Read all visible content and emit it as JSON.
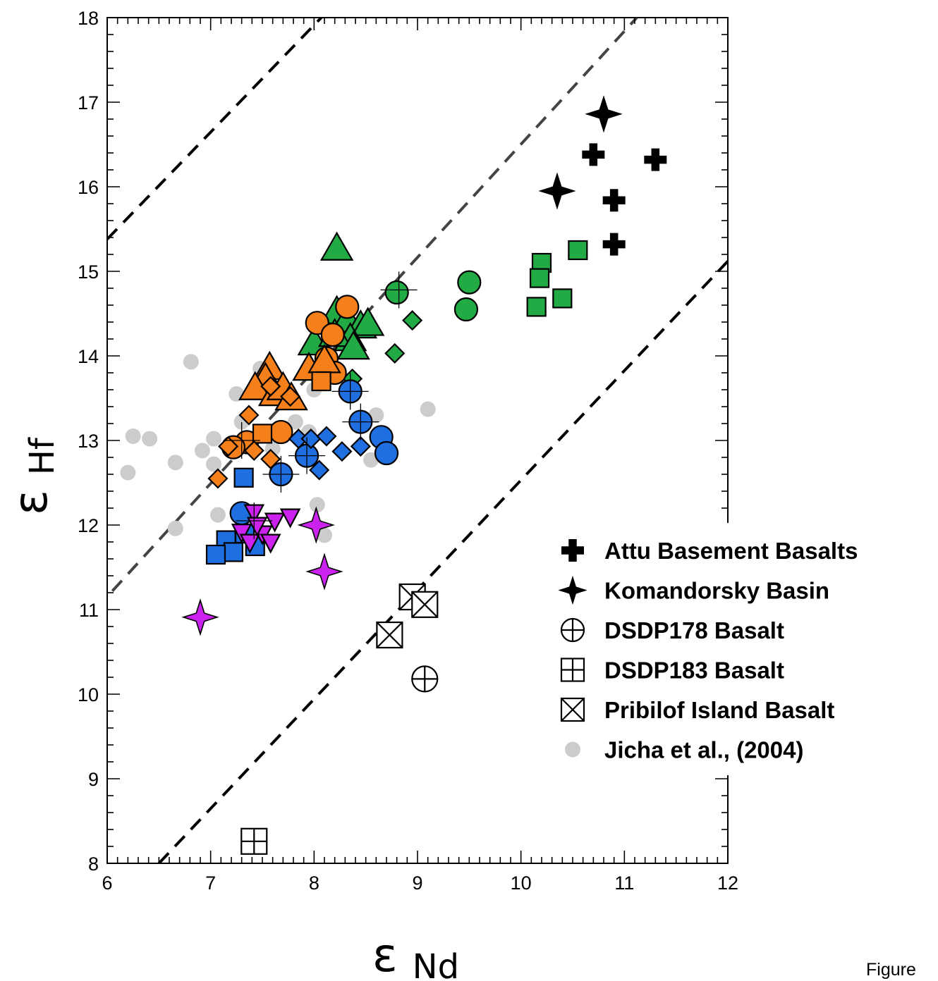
{
  "chart_data": {
    "type": "scatter",
    "xlabel": "εNd",
    "ylabel": "εHf",
    "xlabel_symbol": "ε",
    "xlabel_sub": "Nd",
    "ylabel_symbol": "ε",
    "ylabel_sub": "Hf",
    "xlim": [
      6,
      12
    ],
    "ylim": [
      8,
      18
    ],
    "x_ticks": [
      "6",
      "7",
      "8",
      "9",
      "10",
      "11",
      "12"
    ],
    "y_ticks": [
      "8",
      "9",
      "10",
      "11",
      "12",
      "13",
      "14",
      "15",
      "16",
      "17",
      "18"
    ],
    "grid": false,
    "legend_position": "lower-right",
    "reference_lines": [
      {
        "x1": 6.0,
        "y1": 15.38,
        "x2": 8.07,
        "y2": 18.0,
        "color": "#000000"
      },
      {
        "x1": 6.05,
        "y1": 11.22,
        "x2": 11.12,
        "y2": 18.0,
        "color": "#444444"
      },
      {
        "x1": 6.5,
        "y1": 8.0,
        "x2": 12.0,
        "y2": 15.12,
        "color": "#000000"
      }
    ],
    "series": [
      {
        "name": "Attu Basement Basalts",
        "marker": "cross",
        "color": "#000000",
        "in_legend": true,
        "points": [
          [
            10.7,
            16.38
          ],
          [
            11.3,
            16.32
          ],
          [
            10.9,
            15.84
          ],
          [
            10.9,
            15.32
          ]
        ]
      },
      {
        "name": "Komandorsky Basin",
        "marker": "star4",
        "color": "#000000",
        "in_legend": true,
        "points": [
          [
            10.8,
            16.86
          ],
          [
            10.35,
            15.95
          ]
        ]
      },
      {
        "name": "DSDP178 Basalt",
        "marker": "circleplus",
        "color": "#000000",
        "in_legend": true,
        "points": [
          [
            9.07,
            10.18
          ]
        ]
      },
      {
        "name": "DSDP183 Basalt",
        "marker": "squareplus",
        "color": "#000000",
        "in_legend": true,
        "points": [
          [
            7.42,
            8.26
          ]
        ]
      },
      {
        "name": "Pribilof Island Basalt",
        "marker": "squarex",
        "color": "#000000",
        "in_legend": true,
        "points": [
          [
            8.95,
            11.15
          ],
          [
            9.07,
            11.06
          ],
          [
            8.73,
            10.7
          ]
        ]
      },
      {
        "name": "Jicha et al., (2004)",
        "marker": "dot",
        "color": "#cccccc",
        "in_legend": true,
        "points": [
          [
            6.2,
            12.62
          ],
          [
            6.25,
            13.05
          ],
          [
            6.41,
            13.02
          ],
          [
            6.66,
            12.74
          ],
          [
            6.66,
            11.96
          ],
          [
            6.81,
            13.93
          ],
          [
            6.92,
            12.88
          ],
          [
            7.03,
            13.02
          ],
          [
            7.03,
            12.72
          ],
          [
            7.07,
            12.12
          ],
          [
            7.25,
            13.55
          ],
          [
            7.3,
            13.22
          ],
          [
            7.48,
            13.85
          ],
          [
            7.82,
            13.22
          ],
          [
            8.03,
            12.24
          ],
          [
            8.1,
            11.88
          ],
          [
            8.55,
            12.77
          ],
          [
            8.6,
            13.3
          ],
          [
            9.1,
            13.37
          ],
          [
            7.95,
            13.1
          ],
          [
            7.6,
            12.9
          ],
          [
            8.0,
            13.6
          ]
        ]
      },
      {
        "name": "",
        "marker": "circle",
        "color": "#22aa44",
        "in_legend": false,
        "points": [
          [
            8.8,
            14.75
          ],
          [
            9.5,
            14.87
          ],
          [
            9.47,
            14.55
          ]
        ]
      },
      {
        "name": "",
        "marker": "square",
        "color": "#22aa44",
        "in_legend": false,
        "points": [
          [
            10.55,
            15.25
          ],
          [
            10.2,
            15.1
          ],
          [
            10.18,
            14.92
          ],
          [
            10.4,
            14.68
          ],
          [
            10.15,
            14.58
          ]
        ]
      },
      {
        "name": "",
        "marker": "triangle",
        "color": "#22aa44",
        "in_legend": false,
        "points": [
          [
            8.22,
            15.27
          ],
          [
            8.22,
            14.52
          ],
          [
            8.32,
            14.42
          ],
          [
            8.45,
            14.35
          ],
          [
            8.52,
            14.38
          ],
          [
            8.35,
            14.2
          ],
          [
            8.0,
            14.15
          ],
          [
            8.2,
            14.25
          ],
          [
            8.38,
            14.1
          ]
        ]
      },
      {
        "name": "",
        "marker": "diamond",
        "color": "#22aa44",
        "in_legend": false,
        "points": [
          [
            8.95,
            14.42
          ],
          [
            8.78,
            14.03
          ],
          [
            8.37,
            13.73
          ]
        ]
      },
      {
        "name": "",
        "marker": "circle",
        "color": "#f57f1a",
        "in_legend": false,
        "points": [
          [
            8.32,
            14.58
          ],
          [
            8.03,
            14.39
          ],
          [
            8.18,
            14.25
          ],
          [
            8.12,
            13.97
          ],
          [
            8.2,
            13.8
          ],
          [
            7.68,
            13.1
          ],
          [
            7.35,
            12.98
          ],
          [
            7.22,
            12.92
          ]
        ]
      },
      {
        "name": "",
        "marker": "triangle",
        "color": "#f57f1a",
        "in_legend": false,
        "points": [
          [
            7.57,
            13.86
          ],
          [
            7.53,
            13.73
          ],
          [
            7.43,
            13.62
          ],
          [
            7.62,
            13.55
          ],
          [
            7.7,
            13.62
          ],
          [
            7.78,
            13.5
          ],
          [
            7.95,
            13.85
          ],
          [
            8.1,
            13.94
          ]
        ]
      },
      {
        "name": "",
        "marker": "square",
        "color": "#f57f1a",
        "in_legend": false,
        "points": [
          [
            8.07,
            13.7
          ],
          [
            7.5,
            13.08
          ]
        ]
      },
      {
        "name": "",
        "marker": "diamond",
        "color": "#f57f1a",
        "in_legend": false,
        "points": [
          [
            7.58,
            13.64
          ],
          [
            7.77,
            13.52
          ],
          [
            7.37,
            13.3
          ],
          [
            7.17,
            12.93
          ],
          [
            7.42,
            12.88
          ],
          [
            7.58,
            12.78
          ],
          [
            7.07,
            12.55
          ]
        ]
      },
      {
        "name": "",
        "marker": "circle",
        "color": "#1f6fe0",
        "in_legend": false,
        "points": [
          [
            8.35,
            13.58
          ],
          [
            8.45,
            13.22
          ],
          [
            8.65,
            13.04
          ],
          [
            8.7,
            12.85
          ],
          [
            7.93,
            12.82
          ],
          [
            7.68,
            12.6
          ],
          [
            7.3,
            12.14
          ]
        ]
      },
      {
        "name": "",
        "marker": "diamond",
        "color": "#1f6fe0",
        "in_legend": false,
        "points": [
          [
            7.85,
            13.02
          ],
          [
            7.97,
            13.02
          ],
          [
            8.12,
            13.05
          ],
          [
            8.45,
            12.93
          ],
          [
            8.27,
            12.87
          ],
          [
            8.05,
            12.65
          ]
        ]
      },
      {
        "name": "",
        "marker": "square",
        "color": "#1f6fe0",
        "in_legend": false,
        "points": [
          [
            7.32,
            12.56
          ],
          [
            7.15,
            11.82
          ],
          [
            7.22,
            11.68
          ],
          [
            7.05,
            11.65
          ],
          [
            7.43,
            11.75
          ],
          [
            7.33,
            11.9
          ]
        ]
      },
      {
        "name": "",
        "marker": "star4",
        "color": "#cc22ee",
        "in_legend": false,
        "points": [
          [
            8.02,
            12.0
          ],
          [
            8.1,
            11.45
          ],
          [
            6.9,
            10.91
          ]
        ]
      },
      {
        "name": "",
        "marker": "triangledown",
        "color": "#cc22ee",
        "in_legend": false,
        "points": [
          [
            7.42,
            12.15
          ],
          [
            7.62,
            12.05
          ],
          [
            7.77,
            12.1
          ],
          [
            7.3,
            11.92
          ],
          [
            7.5,
            11.9
          ],
          [
            7.38,
            11.8
          ],
          [
            7.58,
            11.8
          ],
          [
            7.45,
            12.0
          ]
        ]
      }
    ],
    "crosshair_points": [
      [
        8.82,
        14.78
      ],
      [
        7.68,
        12.6
      ],
      [
        8.35,
        13.58
      ],
      [
        8.45,
        13.22
      ],
      [
        7.3,
        13.0
      ],
      [
        7.42,
        12.05
      ],
      [
        7.93,
        12.82
      ]
    ]
  },
  "legend": [
    {
      "marker": "cross",
      "label": "Attu Basement Basalts"
    },
    {
      "marker": "star4",
      "label": "Komandorsky Basin"
    },
    {
      "marker": "circleplus",
      "label": "DSDP178 Basalt"
    },
    {
      "marker": "squareplus",
      "label": "DSDP183 Basalt"
    },
    {
      "marker": "squarex",
      "label": "Pribilof Island Basalt"
    },
    {
      "marker": "dot",
      "label": "Jicha et al., (2004)"
    }
  ],
  "caption": "Figure"
}
